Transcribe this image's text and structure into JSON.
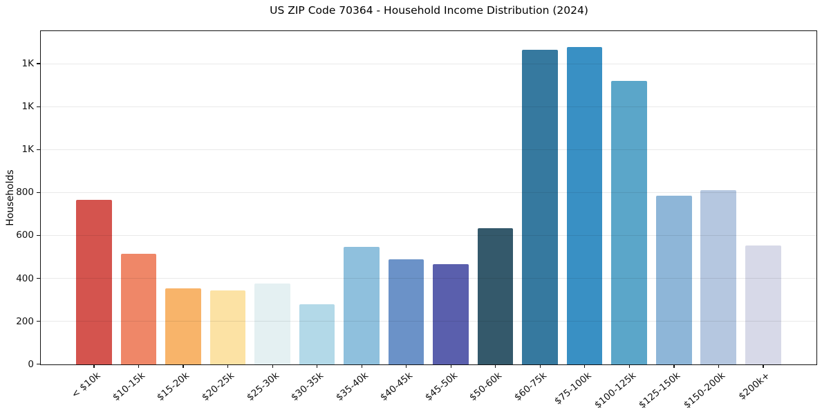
{
  "chart_data": {
    "type": "bar",
    "title": "US ZIP Code 70364 - Household Income Distribution (2024)",
    "xlabel": "",
    "ylabel": "Households",
    "categories": [
      "< $10k",
      "$10-15k",
      "$15-20k",
      "$20-25k",
      "$25-30k",
      "$30-35k",
      "$35-40k",
      "$40-45k",
      "$45-50k",
      "$50-60k",
      "$60-75k",
      "$75-100k",
      "$100-125k",
      "$125-150k",
      "$150-200k",
      "$200k+"
    ],
    "values": [
      765,
      515,
      353,
      346,
      377,
      280,
      547,
      489,
      467,
      636,
      1465,
      1477,
      1320,
      787,
      813,
      555
    ],
    "bar_colors": [
      "#d4544e",
      "#ef8768",
      "#f8b46a",
      "#fce2a4",
      "#e4f0f2",
      "#b3d9e8",
      "#8fc0dd",
      "#6b92c8",
      "#5a5fad",
      "#34596b",
      "#36799f",
      "#3990c4",
      "#5ba6c9",
      "#8eb6d8",
      "#b5c7e0",
      "#d7d9e8"
    ],
    "ylim": [
      0,
      1551
    ],
    "yticks": [
      0,
      200,
      400,
      600,
      800,
      1000,
      1200,
      1400
    ],
    "ytick_labels": [
      "0",
      "200",
      "400",
      "600",
      "800",
      "1K",
      "1K",
      "1K"
    ],
    "grid": "horizontal",
    "grid_color": "#ebebeb",
    "spine_color": "#111111",
    "background_color": "#ffffff",
    "legend": "none",
    "x_tick_rotation_deg": 40
  }
}
